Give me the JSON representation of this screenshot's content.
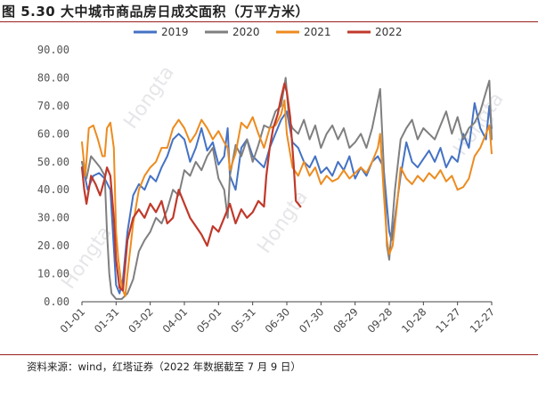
{
  "title": "图 5.30 大中城市商品房日成交面积（万平方米）",
  "source": "资料来源：wind，红塔证券（2022 年数据截至 7 月 9 日）",
  "watermark": "Hongta",
  "chart_data": {
    "type": "line",
    "title": "",
    "xlabel": "",
    "ylabel": "",
    "ylim": [
      0,
      90
    ],
    "yticks": [
      "0.00",
      "10.00",
      "20.00",
      "30.00",
      "40.00",
      "50.00",
      "60.00",
      "70.00",
      "80.00",
      "90.00"
    ],
    "x_categories": [
      "01-01",
      "01-31",
      "03-02",
      "04-01",
      "05-01",
      "05-31",
      "06-30",
      "07-30",
      "08-29",
      "09-28",
      "10-28",
      "11-27",
      "12-27"
    ],
    "legend": [
      "2019",
      "2020",
      "2021",
      "2022"
    ],
    "legend_position": "top",
    "grid": false,
    "series": [
      {
        "name": "2019",
        "color": "#4472c4",
        "points": [
          [
            0,
            50
          ],
          [
            5,
            40
          ],
          [
            10,
            45
          ],
          [
            15,
            46
          ],
          [
            20,
            44
          ],
          [
            25,
            40
          ],
          [
            30,
            6
          ],
          [
            33,
            3
          ],
          [
            36,
            8
          ],
          [
            40,
            25
          ],
          [
            45,
            38
          ],
          [
            50,
            42
          ],
          [
            55,
            40
          ],
          [
            60,
            45
          ],
          [
            65,
            43
          ],
          [
            70,
            48
          ],
          [
            75,
            52
          ],
          [
            80,
            58
          ],
          [
            85,
            60
          ],
          [
            90,
            58
          ],
          [
            95,
            50
          ],
          [
            100,
            55
          ],
          [
            105,
            62
          ],
          [
            110,
            54
          ],
          [
            115,
            57
          ],
          [
            120,
            49
          ],
          [
            125,
            52
          ],
          [
            128,
            62
          ],
          [
            130,
            45
          ],
          [
            135,
            40
          ],
          [
            140,
            55
          ],
          [
            145,
            58
          ],
          [
            150,
            52
          ],
          [
            155,
            50
          ],
          [
            160,
            48
          ],
          [
            165,
            55
          ],
          [
            170,
            60
          ],
          [
            175,
            65
          ],
          [
            180,
            68
          ],
          [
            185,
            57
          ],
          [
            190,
            55
          ],
          [
            195,
            50
          ],
          [
            200,
            48
          ],
          [
            205,
            52
          ],
          [
            210,
            46
          ],
          [
            215,
            48
          ],
          [
            220,
            45
          ],
          [
            225,
            50
          ],
          [
            230,
            47
          ],
          [
            235,
            52
          ],
          [
            240,
            44
          ],
          [
            245,
            48
          ],
          [
            250,
            45
          ],
          [
            255,
            50
          ],
          [
            260,
            52
          ],
          [
            265,
            48
          ],
          [
            270,
            25
          ],
          [
            272,
            22
          ],
          [
            275,
            30
          ],
          [
            280,
            45
          ],
          [
            285,
            57
          ],
          [
            290,
            50
          ],
          [
            295,
            48
          ],
          [
            300,
            51
          ],
          [
            305,
            54
          ],
          [
            310,
            50
          ],
          [
            315,
            55
          ],
          [
            320,
            48
          ],
          [
            325,
            52
          ],
          [
            330,
            50
          ],
          [
            335,
            60
          ],
          [
            340,
            55
          ],
          [
            345,
            71
          ],
          [
            350,
            62
          ],
          [
            355,
            58
          ],
          [
            358,
            70
          ],
          [
            360,
            62
          ]
        ]
      },
      {
        "name": "2020",
        "color": "#7f7f7f",
        "points": [
          [
            0,
            50
          ],
          [
            4,
            44
          ],
          [
            8,
            52
          ],
          [
            12,
            50
          ],
          [
            16,
            48
          ],
          [
            20,
            45
          ],
          [
            22,
            25
          ],
          [
            24,
            10
          ],
          [
            26,
            3
          ],
          [
            30,
            1
          ],
          [
            35,
            1
          ],
          [
            40,
            3
          ],
          [
            45,
            8
          ],
          [
            50,
            18
          ],
          [
            55,
            22
          ],
          [
            60,
            25
          ],
          [
            65,
            30
          ],
          [
            70,
            28
          ],
          [
            75,
            33
          ],
          [
            80,
            40
          ],
          [
            85,
            38
          ],
          [
            90,
            47
          ],
          [
            95,
            45
          ],
          [
            100,
            50
          ],
          [
            105,
            47
          ],
          [
            110,
            52
          ],
          [
            115,
            55
          ],
          [
            120,
            44
          ],
          [
            125,
            40
          ],
          [
            128,
            30
          ],
          [
            130,
            45
          ],
          [
            135,
            56
          ],
          [
            140,
            52
          ],
          [
            145,
            58
          ],
          [
            150,
            50
          ],
          [
            155,
            56
          ],
          [
            160,
            63
          ],
          [
            165,
            62
          ],
          [
            170,
            68
          ],
          [
            175,
            70
          ],
          [
            179,
            80
          ],
          [
            182,
            65
          ],
          [
            185,
            62
          ],
          [
            190,
            60
          ],
          [
            195,
            65
          ],
          [
            200,
            58
          ],
          [
            205,
            63
          ],
          [
            210,
            55
          ],
          [
            215,
            60
          ],
          [
            220,
            63
          ],
          [
            225,
            58
          ],
          [
            230,
            62
          ],
          [
            235,
            55
          ],
          [
            240,
            57
          ],
          [
            245,
            60
          ],
          [
            250,
            55
          ],
          [
            255,
            62
          ],
          [
            262,
            76
          ],
          [
            265,
            50
          ],
          [
            268,
            20
          ],
          [
            270,
            15
          ],
          [
            272,
            25
          ],
          [
            275,
            40
          ],
          [
            280,
            58
          ],
          [
            285,
            62
          ],
          [
            290,
            65
          ],
          [
            295,
            58
          ],
          [
            300,
            62
          ],
          [
            305,
            60
          ],
          [
            310,
            58
          ],
          [
            315,
            63
          ],
          [
            320,
            68
          ],
          [
            325,
            60
          ],
          [
            330,
            66
          ],
          [
            335,
            58
          ],
          [
            340,
            62
          ],
          [
            345,
            64
          ],
          [
            350,
            68
          ],
          [
            355,
            75
          ],
          [
            358,
            79
          ],
          [
            360,
            58
          ]
        ]
      },
      {
        "name": "2021",
        "color": "#ed8b1f",
        "points": [
          [
            0,
            57
          ],
          [
            3,
            45
          ],
          [
            6,
            62
          ],
          [
            10,
            63
          ],
          [
            14,
            58
          ],
          [
            18,
            52
          ],
          [
            20,
            52
          ],
          [
            22,
            62
          ],
          [
            25,
            64
          ],
          [
            28,
            55
          ],
          [
            30,
            25
          ],
          [
            32,
            15
          ],
          [
            35,
            5
          ],
          [
            38,
            2
          ],
          [
            40,
            10
          ],
          [
            45,
            28
          ],
          [
            50,
            40
          ],
          [
            55,
            45
          ],
          [
            60,
            48
          ],
          [
            65,
            50
          ],
          [
            70,
            55
          ],
          [
            75,
            55
          ],
          [
            80,
            62
          ],
          [
            85,
            65
          ],
          [
            90,
            62
          ],
          [
            95,
            57
          ],
          [
            100,
            60
          ],
          [
            105,
            65
          ],
          [
            110,
            62
          ],
          [
            115,
            58
          ],
          [
            120,
            61
          ],
          [
            125,
            57
          ],
          [
            128,
            55
          ],
          [
            130,
            47
          ],
          [
            135,
            53
          ],
          [
            140,
            64
          ],
          [
            145,
            62
          ],
          [
            150,
            66
          ],
          [
            155,
            60
          ],
          [
            160,
            55
          ],
          [
            165,
            62
          ],
          [
            170,
            63
          ],
          [
            175,
            67
          ],
          [
            178,
            72
          ],
          [
            180,
            60
          ],
          [
            185,
            48
          ],
          [
            190,
            45
          ],
          [
            195,
            50
          ],
          [
            200,
            45
          ],
          [
            205,
            48
          ],
          [
            210,
            42
          ],
          [
            215,
            45
          ],
          [
            220,
            43
          ],
          [
            225,
            44
          ],
          [
            230,
            47
          ],
          [
            235,
            44
          ],
          [
            240,
            46
          ],
          [
            245,
            48
          ],
          [
            250,
            46
          ],
          [
            255,
            50
          ],
          [
            260,
            55
          ],
          [
            262,
            60
          ],
          [
            265,
            40
          ],
          [
            268,
            22
          ],
          [
            270,
            17
          ],
          [
            273,
            20
          ],
          [
            277,
            35
          ],
          [
            280,
            48
          ],
          [
            285,
            44
          ],
          [
            290,
            42
          ],
          [
            295,
            45
          ],
          [
            300,
            43
          ],
          [
            305,
            46
          ],
          [
            310,
            44
          ],
          [
            315,
            47
          ],
          [
            320,
            43
          ],
          [
            325,
            45
          ],
          [
            330,
            40
          ],
          [
            335,
            41
          ],
          [
            340,
            44
          ],
          [
            345,
            52
          ],
          [
            350,
            55
          ],
          [
            355,
            60
          ],
          [
            358,
            63
          ],
          [
            360,
            53
          ]
        ]
      },
      {
        "name": "2022",
        "color": "#c0392b",
        "points": [
          [
            0,
            48
          ],
          [
            2,
            40
          ],
          [
            4,
            35
          ],
          [
            8,
            45
          ],
          [
            12,
            42
          ],
          [
            16,
            38
          ],
          [
            20,
            44
          ],
          [
            22,
            48
          ],
          [
            25,
            45
          ],
          [
            28,
            30
          ],
          [
            30,
            15
          ],
          [
            33,
            5
          ],
          [
            36,
            4
          ],
          [
            40,
            22
          ],
          [
            45,
            30
          ],
          [
            50,
            33
          ],
          [
            55,
            30
          ],
          [
            60,
            35
          ],
          [
            65,
            32
          ],
          [
            70,
            36
          ],
          [
            75,
            28
          ],
          [
            80,
            30
          ],
          [
            85,
            40
          ],
          [
            90,
            35
          ],
          [
            95,
            30
          ],
          [
            100,
            27
          ],
          [
            105,
            24
          ],
          [
            110,
            20
          ],
          [
            115,
            27
          ],
          [
            120,
            25
          ],
          [
            125,
            30
          ],
          [
            130,
            35
          ],
          [
            135,
            28
          ],
          [
            140,
            33
          ],
          [
            145,
            30
          ],
          [
            150,
            32
          ],
          [
            155,
            36
          ],
          [
            160,
            34
          ],
          [
            162,
            45
          ],
          [
            165,
            55
          ],
          [
            168,
            62
          ],
          [
            172,
            67
          ],
          [
            175,
            73
          ],
          [
            178,
            78
          ],
          [
            180,
            75
          ],
          [
            183,
            66
          ],
          [
            186,
            49
          ],
          [
            188,
            36
          ],
          [
            190,
            35
          ],
          [
            192,
            34
          ]
        ]
      }
    ]
  }
}
